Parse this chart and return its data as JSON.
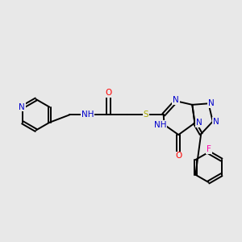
{
  "background_color": "#e8e8e8",
  "figure_size": [
    3.0,
    3.0
  ],
  "dpi": 100,
  "atom_colors": {
    "N": "#0000cc",
    "O": "#ff0000",
    "S": "#aaaa00",
    "F": "#ff00aa",
    "C": "#000000",
    "H": "#000000"
  },
  "lw": 1.4
}
